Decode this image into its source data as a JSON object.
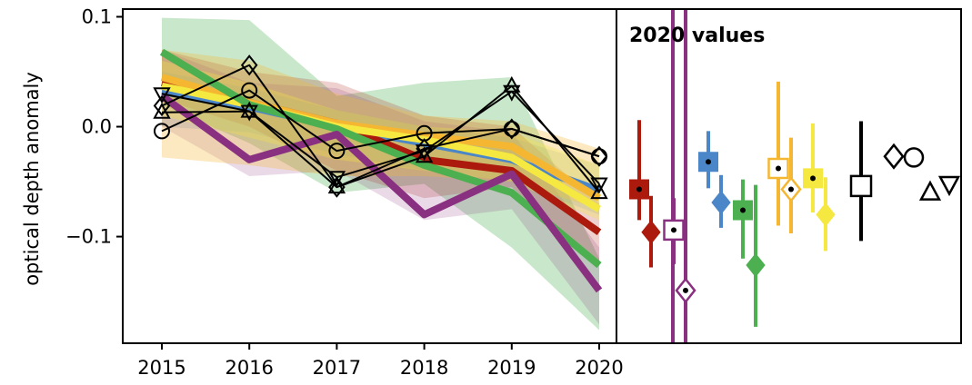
{
  "chart_data": {
    "type": "line",
    "ylabel": "optical depth anomaly",
    "xlabel": "",
    "ylim": [
      -0.197,
      0.107
    ],
    "x": [
      2015,
      2016,
      2017,
      2018,
      2019,
      2020
    ],
    "x_tick_labels": [
      "2015",
      "2016",
      "2017",
      "2018",
      "2019",
      "2020"
    ],
    "y_ticks": [
      0.1,
      0.0,
      -0.1
    ],
    "y_tick_labels": [
      "0.1",
      "0.0",
      "−0.1"
    ],
    "grid": false,
    "legend": "none",
    "bands": [
      {
        "color": "#4caf50",
        "opacity": 0.3,
        "upper": [
          0.099,
          0.097,
          0.028,
          0.04,
          0.045,
          -0.12
        ],
        "lower": [
          0.02,
          -0.015,
          -0.06,
          -0.052,
          -0.11,
          -0.185
        ]
      },
      {
        "color": "#ab1a0c",
        "opacity": 0.2,
        "upper": [
          0.07,
          0.05,
          0.04,
          0.01,
          0.0,
          -0.07
        ],
        "lower": [
          0.025,
          0.0,
          -0.04,
          -0.065,
          -0.055,
          -0.125
        ]
      },
      {
        "color": "#893080",
        "opacity": 0.18,
        "upper": [
          0.07,
          0.04,
          0.035,
          0.005,
          -0.005,
          -0.11
        ],
        "lower": [
          0.0,
          -0.045,
          -0.04,
          -0.085,
          -0.075,
          -0.18
        ]
      },
      {
        "color": "#4a86c8",
        "opacity": 0.18,
        "upper": [
          0.05,
          0.035,
          0.015,
          0.0,
          -0.01,
          -0.035
        ],
        "lower": [
          0.0,
          -0.005,
          -0.025,
          -0.04,
          -0.05,
          -0.08
        ]
      },
      {
        "color": "#f5b731",
        "opacity": 0.3,
        "upper": [
          0.07,
          0.06,
          0.03,
          0.01,
          0.005,
          -0.02
        ],
        "lower": [
          -0.028,
          -0.035,
          -0.045,
          -0.045,
          -0.05,
          -0.075
        ]
      },
      {
        "color": "#f5e840",
        "opacity": 0.3,
        "upper": [
          0.06,
          0.04,
          0.015,
          0.0,
          -0.005,
          -0.035
        ],
        "lower": [
          0.01,
          -0.01,
          -0.03,
          -0.04,
          -0.05,
          -0.085
        ]
      }
    ],
    "series": [
      {
        "color": "#4a86c8",
        "width": 8,
        "values": [
          0.032,
          0.018,
          0.0,
          -0.015,
          -0.03,
          -0.058
        ]
      },
      {
        "color": "#ab1a0c",
        "width": 8,
        "values": [
          0.04,
          0.022,
          0.003,
          -0.03,
          -0.04,
          -0.096
        ]
      },
      {
        "color": "#f5b731",
        "width": 8,
        "values": [
          0.045,
          0.022,
          0.003,
          -0.008,
          -0.018,
          -0.065
        ]
      },
      {
        "color": "#f5e840",
        "width": 8,
        "values": [
          0.037,
          0.02,
          0.0,
          -0.012,
          -0.028,
          -0.075
        ]
      },
      {
        "color": "#4caf50",
        "width": 8,
        "values": [
          0.068,
          0.02,
          -0.002,
          -0.035,
          -0.06,
          -0.126
        ]
      },
      {
        "color": "#893080",
        "width": 8,
        "values": [
          0.028,
          -0.03,
          -0.007,
          -0.08,
          -0.043,
          -0.149
        ]
      },
      {
        "color": "#000000",
        "width": 2,
        "marker": "circle",
        "values": [
          -0.004,
          0.033,
          -0.022,
          -0.006,
          -0.002,
          -0.027
        ]
      },
      {
        "color": "#000000",
        "width": 2,
        "marker": "diamond",
        "values": [
          0.019,
          0.056,
          -0.055,
          -0.02,
          -0.002,
          -0.027
        ]
      },
      {
        "color": "#000000",
        "width": 2,
        "marker": "triangle-up",
        "values": [
          0.013,
          0.014,
          -0.055,
          -0.027,
          0.037,
          -0.06
        ]
      },
      {
        "color": "#000000",
        "width": 2,
        "marker": "triangle-down",
        "values": [
          0.03,
          0.014,
          -0.046,
          -0.022,
          0.032,
          -0.052
        ]
      }
    ],
    "inset": {
      "title": "2020 values",
      "vertical_lines": [
        {
          "color": "#893080"
        },
        {
          "color": "#893080"
        }
      ],
      "points": [
        {
          "marker": "square-filled",
          "color": "#ab1a0c",
          "value": -0.057,
          "low": -0.085,
          "high": 0.006,
          "dot": true
        },
        {
          "marker": "diamond-filled",
          "color": "#ab1a0c",
          "value": -0.096,
          "low": -0.128,
          "high": -0.063
        },
        {
          "marker": "square-open",
          "color": "#893080",
          "value": -0.094,
          "low": -0.125,
          "high": -0.065,
          "dot": true
        },
        {
          "marker": "diamond-open",
          "color": "#893080",
          "value": -0.149,
          "low": -0.175,
          "high": -0.12,
          "dot": true
        },
        {
          "marker": "square-filled",
          "color": "#4a86c8",
          "value": -0.032,
          "low": -0.056,
          "high": -0.004,
          "dot": true
        },
        {
          "marker": "diamond-filled",
          "color": "#4a86c8",
          "value": -0.069,
          "low": -0.092,
          "high": -0.044
        },
        {
          "marker": "square-filled",
          "color": "#4caf50",
          "value": -0.076,
          "low": -0.12,
          "high": -0.048,
          "dot": true
        },
        {
          "marker": "diamond-filled",
          "color": "#4caf50",
          "value": -0.126,
          "low": -0.182,
          "high": -0.053
        },
        {
          "marker": "square-open",
          "color": "#f5b731",
          "value": -0.038,
          "low": -0.09,
          "high": 0.041,
          "dot": true
        },
        {
          "marker": "diamond-open",
          "color": "#f5b731",
          "value": -0.057,
          "low": -0.097,
          "high": -0.01,
          "dot": true
        },
        {
          "marker": "square-filled",
          "color": "#f5e840",
          "value": -0.047,
          "low": -0.078,
          "high": 0.003,
          "dot": true
        },
        {
          "marker": "diamond-filled",
          "color": "#f5e840",
          "value": -0.08,
          "low": -0.113,
          "high": -0.046
        },
        {
          "marker": "square-open",
          "color": "#000000",
          "value": -0.054,
          "low": -0.104,
          "high": 0.005
        },
        {
          "marker": "diamond-open",
          "color": "#000000",
          "value": -0.027
        },
        {
          "marker": "circle-open",
          "color": "#000000",
          "value": -0.028
        },
        {
          "marker": "triangle-up-open",
          "color": "#000000",
          "value": -0.06
        },
        {
          "marker": "triangle-down-open",
          "color": "#000000",
          "value": -0.052
        }
      ]
    }
  }
}
